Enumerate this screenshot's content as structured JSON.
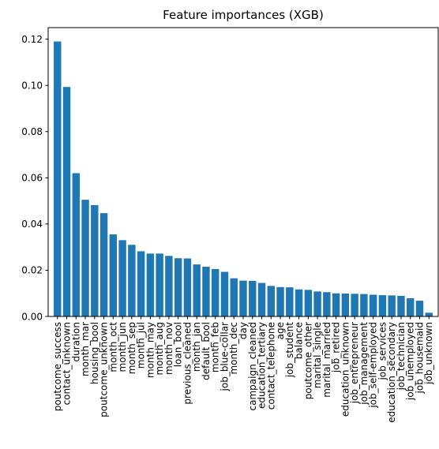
{
  "chart_data": {
    "type": "bar",
    "title": "Feature importances (XGB)",
    "xlabel": "",
    "ylabel": "",
    "ylim": [
      0,
      0.125
    ],
    "yticks": [
      "0.00",
      "0.02",
      "0.04",
      "0.06",
      "0.08",
      "0.10",
      "0.12"
    ],
    "bar_color": "#1f77b4",
    "grid": false,
    "categories": [
      "poutcome_success",
      "contact_unknown",
      "duration",
      "month_mar",
      "housing_bool",
      "poutcome_unknown",
      "month_oct",
      "month_jun",
      "month_sep",
      "month_jul",
      "month_may",
      "month_aug",
      "month_nov",
      "loan_bool",
      "previous_cleaned",
      "month_jan",
      "default_bool",
      "month_feb",
      "job_blue-collar",
      "month_dec",
      "day",
      "campaign_cleaned",
      "education_tertiary",
      "contact_telephone",
      "age",
      "job_student",
      "balance",
      "poutcome_other",
      "marital_single",
      "marital_married",
      "job_retired",
      "education_unknown",
      "job_entrepreneur",
      "job_management",
      "job_self-employed",
      "job_services",
      "education_secondary",
      "job_technician",
      "job_unemployed",
      "job_housemaid",
      "job_unknown"
    ],
    "values": [
      0.119,
      0.0993,
      0.062,
      0.0505,
      0.0482,
      0.0447,
      0.0355,
      0.033,
      0.031,
      0.0282,
      0.0272,
      0.0272,
      0.0262,
      0.0252,
      0.0251,
      0.0225,
      0.0215,
      0.0205,
      0.0193,
      0.0165,
      0.0155,
      0.0154,
      0.0145,
      0.0132,
      0.0127,
      0.0126,
      0.0117,
      0.0115,
      0.0108,
      0.0105,
      0.01,
      0.0099,
      0.0098,
      0.0097,
      0.0094,
      0.0092,
      0.0091,
      0.0089,
      0.0079,
      0.0068,
      0.0016
    ]
  }
}
